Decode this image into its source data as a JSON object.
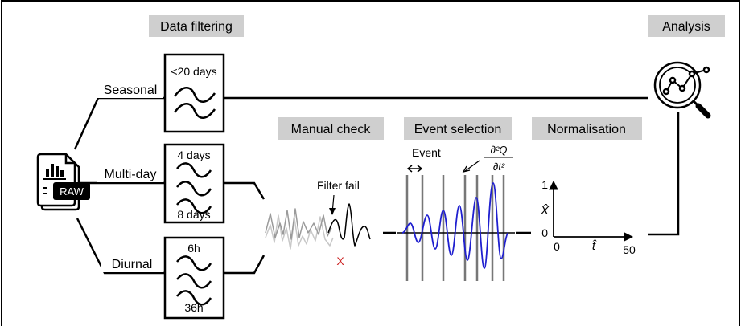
{
  "stages": {
    "filtering": "Data filtering",
    "manual_check": "Manual check",
    "event_selection": "Event selection",
    "normalisation": "Normalisation",
    "analysis": "Analysis"
  },
  "source": {
    "icon": "raw-data-file-icon",
    "badge": "RAW"
  },
  "branches": {
    "seasonal": "Seasonal",
    "multiday": "Multi-day",
    "diurnal": "Diurnal"
  },
  "filters": {
    "seasonal": {
      "label": "<20 days"
    },
    "multiday": {
      "top": "4 days",
      "bottom": "8 days"
    },
    "diurnal": {
      "top": "6h",
      "bottom": "36h"
    }
  },
  "manual_check": {
    "annotation": "Filter fail",
    "fail_mark": "X"
  },
  "event_selection": {
    "event_label": "Event"
  },
  "normalisation": {
    "y_top": "1",
    "y_bottom": "0",
    "x_left": "0",
    "x_right": "50",
    "y_symbol": "X̂",
    "x_symbol": "t̂"
  },
  "colors": {
    "stage_box": "#cfcfcf",
    "event_signal": "#1f1fcf",
    "fail_mark": "#cc2222"
  },
  "analysis": {
    "icon": "magnifier-analytics-icon"
  }
}
